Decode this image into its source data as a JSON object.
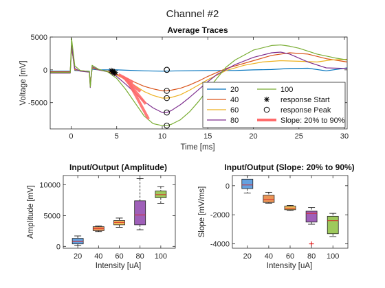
{
  "figure": {
    "title": "Channel #2"
  },
  "chart_data": [
    {
      "id": "traces",
      "type": "line",
      "title": "Average Traces",
      "xlabel": "Time [ms]",
      "ylabel": "Voltage [mV]",
      "xlim": [
        -2.3,
        30.3
      ],
      "ylim": [
        -9000,
        5000
      ],
      "xticks": [
        0,
        5,
        10,
        15,
        20,
        25,
        30
      ],
      "yticks": [
        -5000,
        0,
        5000
      ],
      "series": [
        {
          "name": "20",
          "color": "#0072BD",
          "x": [
            -2.3,
            -0.1,
            0.05,
            0.4,
            1,
            2,
            2.1,
            2.3,
            3,
            5,
            8,
            10,
            12,
            15,
            18,
            20,
            22,
            24,
            26,
            28,
            30.3
          ],
          "y": [
            -200,
            -200,
            3500,
            -100,
            -150,
            -200,
            -2000,
            100,
            0,
            0,
            -150,
            -200,
            -150,
            -100,
            -100,
            0,
            50,
            200,
            250,
            -150,
            300
          ]
        },
        {
          "name": "40",
          "color": "#D95319",
          "x": [
            -2.3,
            -0.1,
            0.05,
            0.4,
            1,
            2,
            2.1,
            2.3,
            3,
            4,
            5,
            6,
            7,
            8,
            9,
            10,
            10.5,
            11,
            12,
            13,
            14,
            15,
            17,
            20,
            22,
            24,
            26,
            28,
            30.3
          ],
          "y": [
            -300,
            -300,
            3600,
            0,
            -100,
            -250,
            -2200,
            300,
            0,
            -200,
            -700,
            -1200,
            -1900,
            -2500,
            -2900,
            -3200,
            -3200,
            -3100,
            -2800,
            -2300,
            -1700,
            -1000,
            200,
            1400,
            2200,
            2600,
            2400,
            1700,
            1200
          ]
        },
        {
          "name": "60",
          "color": "#EDB120",
          "x": [
            -2.3,
            -0.1,
            0.05,
            0.4,
            1,
            2,
            2.1,
            2.3,
            3,
            4,
            5,
            6,
            7,
            8,
            9,
            10,
            10.5,
            11,
            12,
            13,
            14,
            15,
            17,
            19,
            21,
            23,
            25,
            27,
            28.5,
            30.3
          ],
          "y": [
            -400,
            -400,
            3700,
            100,
            -150,
            -300,
            -2500,
            400,
            0,
            -250,
            -800,
            -1500,
            -2400,
            -3300,
            -3900,
            -4300,
            -4300,
            -4200,
            -3800,
            -3100,
            -2300,
            -1500,
            -100,
            700,
            1200,
            1400,
            1300,
            1200,
            1500,
            1600
          ]
        },
        {
          "name": "80",
          "color": "#7E2F8E",
          "x": [
            -2.3,
            -0.1,
            0.05,
            0.4,
            1,
            2,
            2.1,
            2.3,
            3,
            4,
            5,
            6,
            7,
            8,
            9,
            10,
            10.5,
            11,
            12,
            13,
            14,
            15,
            16,
            18,
            20,
            22,
            23,
            24,
            26,
            28,
            30.3
          ],
          "y": [
            -500,
            -500,
            3800,
            200,
            -200,
            -350,
            -2700,
            500,
            0,
            -300,
            -1000,
            -2200,
            -3500,
            -4800,
            -5800,
            -6500,
            -6500,
            -6200,
            -5300,
            -4200,
            -3000,
            -1800,
            -700,
            800,
            1900,
            2600,
            2700,
            2400,
            1200,
            300,
            200
          ]
        },
        {
          "name": "100",
          "color": "#77AC30",
          "x": [
            -2.3,
            -0.1,
            0.05,
            0.4,
            1,
            2,
            2.1,
            2.3,
            3,
            4,
            5,
            6,
            7,
            8,
            9,
            10,
            10.5,
            11,
            12,
            13,
            14,
            15,
            16,
            17,
            18,
            20,
            22,
            23,
            24,
            25,
            27,
            29,
            30.3
          ],
          "y": [
            -400,
            -400,
            4800,
            600,
            -100,
            -250,
            -2600,
            700,
            100,
            -300,
            -1300,
            -3000,
            -5000,
            -7000,
            -8200,
            -8500,
            -8500,
            -8300,
            -7600,
            -6400,
            -4800,
            -3000,
            -1300,
            400,
            1500,
            3000,
            3700,
            3800,
            3600,
            3300,
            2400,
            1800,
            1500
          ]
        }
      ],
      "response_start": {
        "name": "response Start",
        "x": [
          4.4,
          4.55,
          4.6,
          4.75,
          4.85
        ],
        "y": [
          -100,
          -200,
          -300,
          -500,
          -400
        ]
      },
      "response_peak": {
        "name": "response Peak",
        "x": [
          10.5,
          10.5,
          10.5,
          10.5,
          10.5,
          10.5
        ],
        "y": [
          0,
          -3200,
          -4300,
          -6500,
          -8500,
          0
        ]
      },
      "slope_segments": {
        "name": "Slope: 20% to 90%",
        "color": "#FF6B6B",
        "segments": [
          {
            "x": [
              5.2,
              6.8
            ],
            "y": [
              -700,
              -1900
            ]
          },
          {
            "x": [
              5.6,
              7.6
            ],
            "y": [
              -1000,
              -3300
            ]
          },
          {
            "x": [
              6.0,
              8.2
            ],
            "y": [
              -1500,
              -5200
            ]
          },
          {
            "x": [
              6.3,
              8.5
            ],
            "y": [
              -1900,
              -7500
            ]
          }
        ]
      },
      "legend": {
        "position": "bottom-right",
        "entries": [
          {
            "label": "20",
            "color": "#0072BD",
            "kind": "line"
          },
          {
            "label": "100",
            "color": "#77AC30",
            "kind": "line"
          },
          {
            "label": "40",
            "color": "#D95319",
            "kind": "line"
          },
          {
            "label": "response Start",
            "color": "#000000",
            "kind": "star"
          },
          {
            "label": "60",
            "color": "#EDB120",
            "kind": "line"
          },
          {
            "label": "response Peak",
            "color": "#000000",
            "kind": "circle"
          },
          {
            "label": "80",
            "color": "#7E2F8E",
            "kind": "line"
          },
          {
            "label": "Slope: 20% to 90%",
            "color": "#FF6B6B",
            "kind": "thick"
          }
        ]
      }
    },
    {
      "id": "amp",
      "type": "box",
      "title": "Input/Output (Amplitude)",
      "xlabel": "Intensity [uA]",
      "ylabel": "Amplitude [mV]",
      "categories": [
        "20",
        "40",
        "60",
        "80",
        "100"
      ],
      "ylim": [
        -300,
        11500
      ],
      "yticks": [
        0,
        5000,
        10000
      ],
      "boxes": [
        {
          "color": "#4A90D9",
          "min": 100,
          "q1": 400,
          "median": 800,
          "q3": 1300,
          "max": 1700,
          "outliers": []
        },
        {
          "color": "#E8833A",
          "min": 2400,
          "q1": 2550,
          "median": 2900,
          "q3": 3200,
          "max": 3300,
          "outliers": []
        },
        {
          "color": "#F0B43C",
          "min": 3100,
          "q1": 3500,
          "median": 3900,
          "q3": 4200,
          "max": 4600,
          "outliers": []
        },
        {
          "color": "#8E44AD",
          "min": 2700,
          "q1": 3500,
          "median": 5100,
          "q3": 7400,
          "max": 11000,
          "outliers": []
        },
        {
          "color": "#8DBF3F",
          "min": 7000,
          "q1": 7900,
          "median": 8400,
          "q3": 9000,
          "max": 9700,
          "outliers": []
        }
      ]
    },
    {
      "id": "slope",
      "type": "box",
      "title": "Input/Output (Slope: 20% to 90%)",
      "xlabel": "Intensity [uA]",
      "ylabel": "Slope [mV/ms]",
      "categories": [
        "20",
        "40",
        "60",
        "80",
        "100"
      ],
      "ylim": [
        -4300,
        700
      ],
      "yticks": [
        -4000,
        -2000,
        0
      ],
      "boxes": [
        {
          "color": "#4A90D9",
          "min": -500,
          "q1": -200,
          "median": 50,
          "q3": 450,
          "max": 700,
          "outliers": []
        },
        {
          "color": "#E8833A",
          "min": -1200,
          "q1": -1150,
          "median": -950,
          "q3": -650,
          "max": -450,
          "outliers": []
        },
        {
          "color": "#F0B43C",
          "min": -1700,
          "q1": -1650,
          "median": -1550,
          "q3": -1400,
          "max": -1350,
          "outliers": []
        },
        {
          "color": "#8E44AD",
          "min": -2650,
          "q1": -2500,
          "median": -1900,
          "q3": -1750,
          "max": -1500,
          "outliers": [
            -4000
          ]
        },
        {
          "color": "#8DBF3F",
          "min": -3500,
          "q1": -3300,
          "median": -2400,
          "q3": -2100,
          "max": -1900,
          "outliers": []
        }
      ]
    }
  ]
}
